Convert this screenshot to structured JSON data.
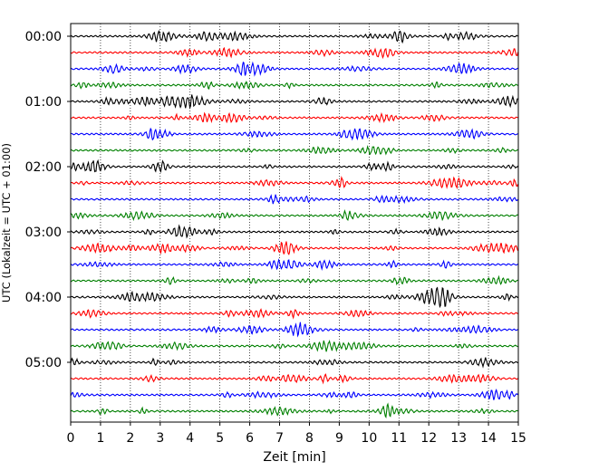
{
  "chart_data": {
    "type": "line",
    "title": "",
    "xlabel": "Zeit  [min]",
    "ylabel": "UTC (Lokalzeit = UTC + 01:00)",
    "xlim": [
      0,
      15
    ],
    "x_ticks": [
      "0",
      "1",
      "2",
      "3",
      "4",
      "5",
      "6",
      "7",
      "8",
      "9",
      "10",
      "11",
      "12",
      "13",
      "14",
      "15"
    ],
    "y_ticks": [
      "00:00",
      "01:00",
      "02:00",
      "03:00",
      "04:00",
      "05:00"
    ],
    "grid": "vertical dotted lines at each minute",
    "trace_count": 24,
    "minutes_per_trace": 15,
    "color_cycle": [
      "#000000",
      "#ff0000",
      "#0000ff",
      "#008000"
    ],
    "traces_start": [
      "00:00",
      "00:15",
      "00:30",
      "00:45",
      "01:00",
      "01:15",
      "01:30",
      "01:45",
      "02:00",
      "02:15",
      "02:30",
      "02:45",
      "03:00",
      "03:15",
      "03:30",
      "03:45",
      "04:00",
      "04:15",
      "04:30",
      "04:45",
      "05:00",
      "05:15",
      "05:30",
      "05:45"
    ]
  }
}
